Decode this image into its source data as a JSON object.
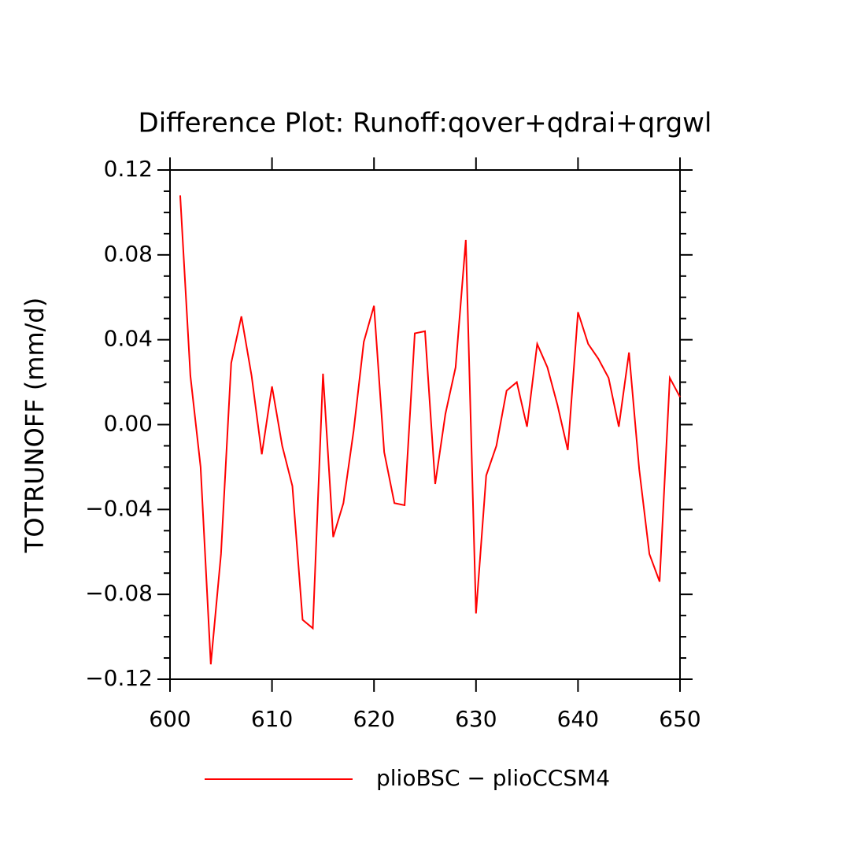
{
  "chart_data": {
    "type": "line",
    "title": "Difference Plot: Runoff:qover+qdrai+qrgwl",
    "y_label": "TOTRUNOFF   (mm/d)",
    "x": [
      601,
      602,
      603,
      604,
      605,
      606,
      607,
      608,
      609,
      610,
      611,
      612,
      613,
      614,
      615,
      616,
      617,
      618,
      619,
      620,
      621,
      622,
      623,
      624,
      625,
      626,
      627,
      628,
      629,
      630,
      631,
      632,
      633,
      634,
      635,
      636,
      637,
      638,
      639,
      640,
      641,
      642,
      643,
      644,
      645,
      646,
      647,
      648,
      649,
      650
    ],
    "series": [
      {
        "name": "plioBSC − plioCCSM4",
        "color": "#ff0000",
        "values": [
          0.108,
          0.023,
          -0.02,
          -0.113,
          -0.061,
          0.029,
          0.051,
          0.023,
          -0.014,
          0.018,
          -0.01,
          -0.029,
          -0.092,
          -0.096,
          0.024,
          -0.053,
          -0.037,
          -0.003,
          0.039,
          0.056,
          -0.013,
          -0.037,
          -0.038,
          0.043,
          0.044,
          -0.028,
          0.005,
          0.027,
          0.087,
          -0.089,
          -0.024,
          -0.01,
          0.016,
          0.02,
          -0.001,
          0.038,
          0.027,
          0.009,
          -0.012,
          0.053,
          0.038,
          0.031,
          0.022,
          -0.001,
          0.034,
          -0.021,
          -0.061,
          -0.074,
          0.022,
          0.013
        ]
      }
    ],
    "xlim": [
      600,
      650
    ],
    "xticks": [
      600,
      610,
      620,
      630,
      640,
      650
    ],
    "ylim": [
      -0.12,
      0.12
    ],
    "yticks": [
      {
        "value": -0.12,
        "label": "−0.12"
      },
      {
        "value": -0.08,
        "label": "−0.08"
      },
      {
        "value": -0.04,
        "label": "−0.04"
      },
      {
        "value": 0,
        "label": "0.00"
      },
      0.04,
      0.08,
      0.12
    ],
    "yminorticks": [
      -0.11,
      -0.1,
      -0.09,
      -0.07,
      -0.06,
      -0.05,
      -0.03,
      -0.02,
      -0.01,
      0.01,
      0.02,
      0.03,
      0.05,
      0.06,
      0.07,
      0.09,
      0.1,
      0.11
    ],
    "legend": "bottom"
  }
}
